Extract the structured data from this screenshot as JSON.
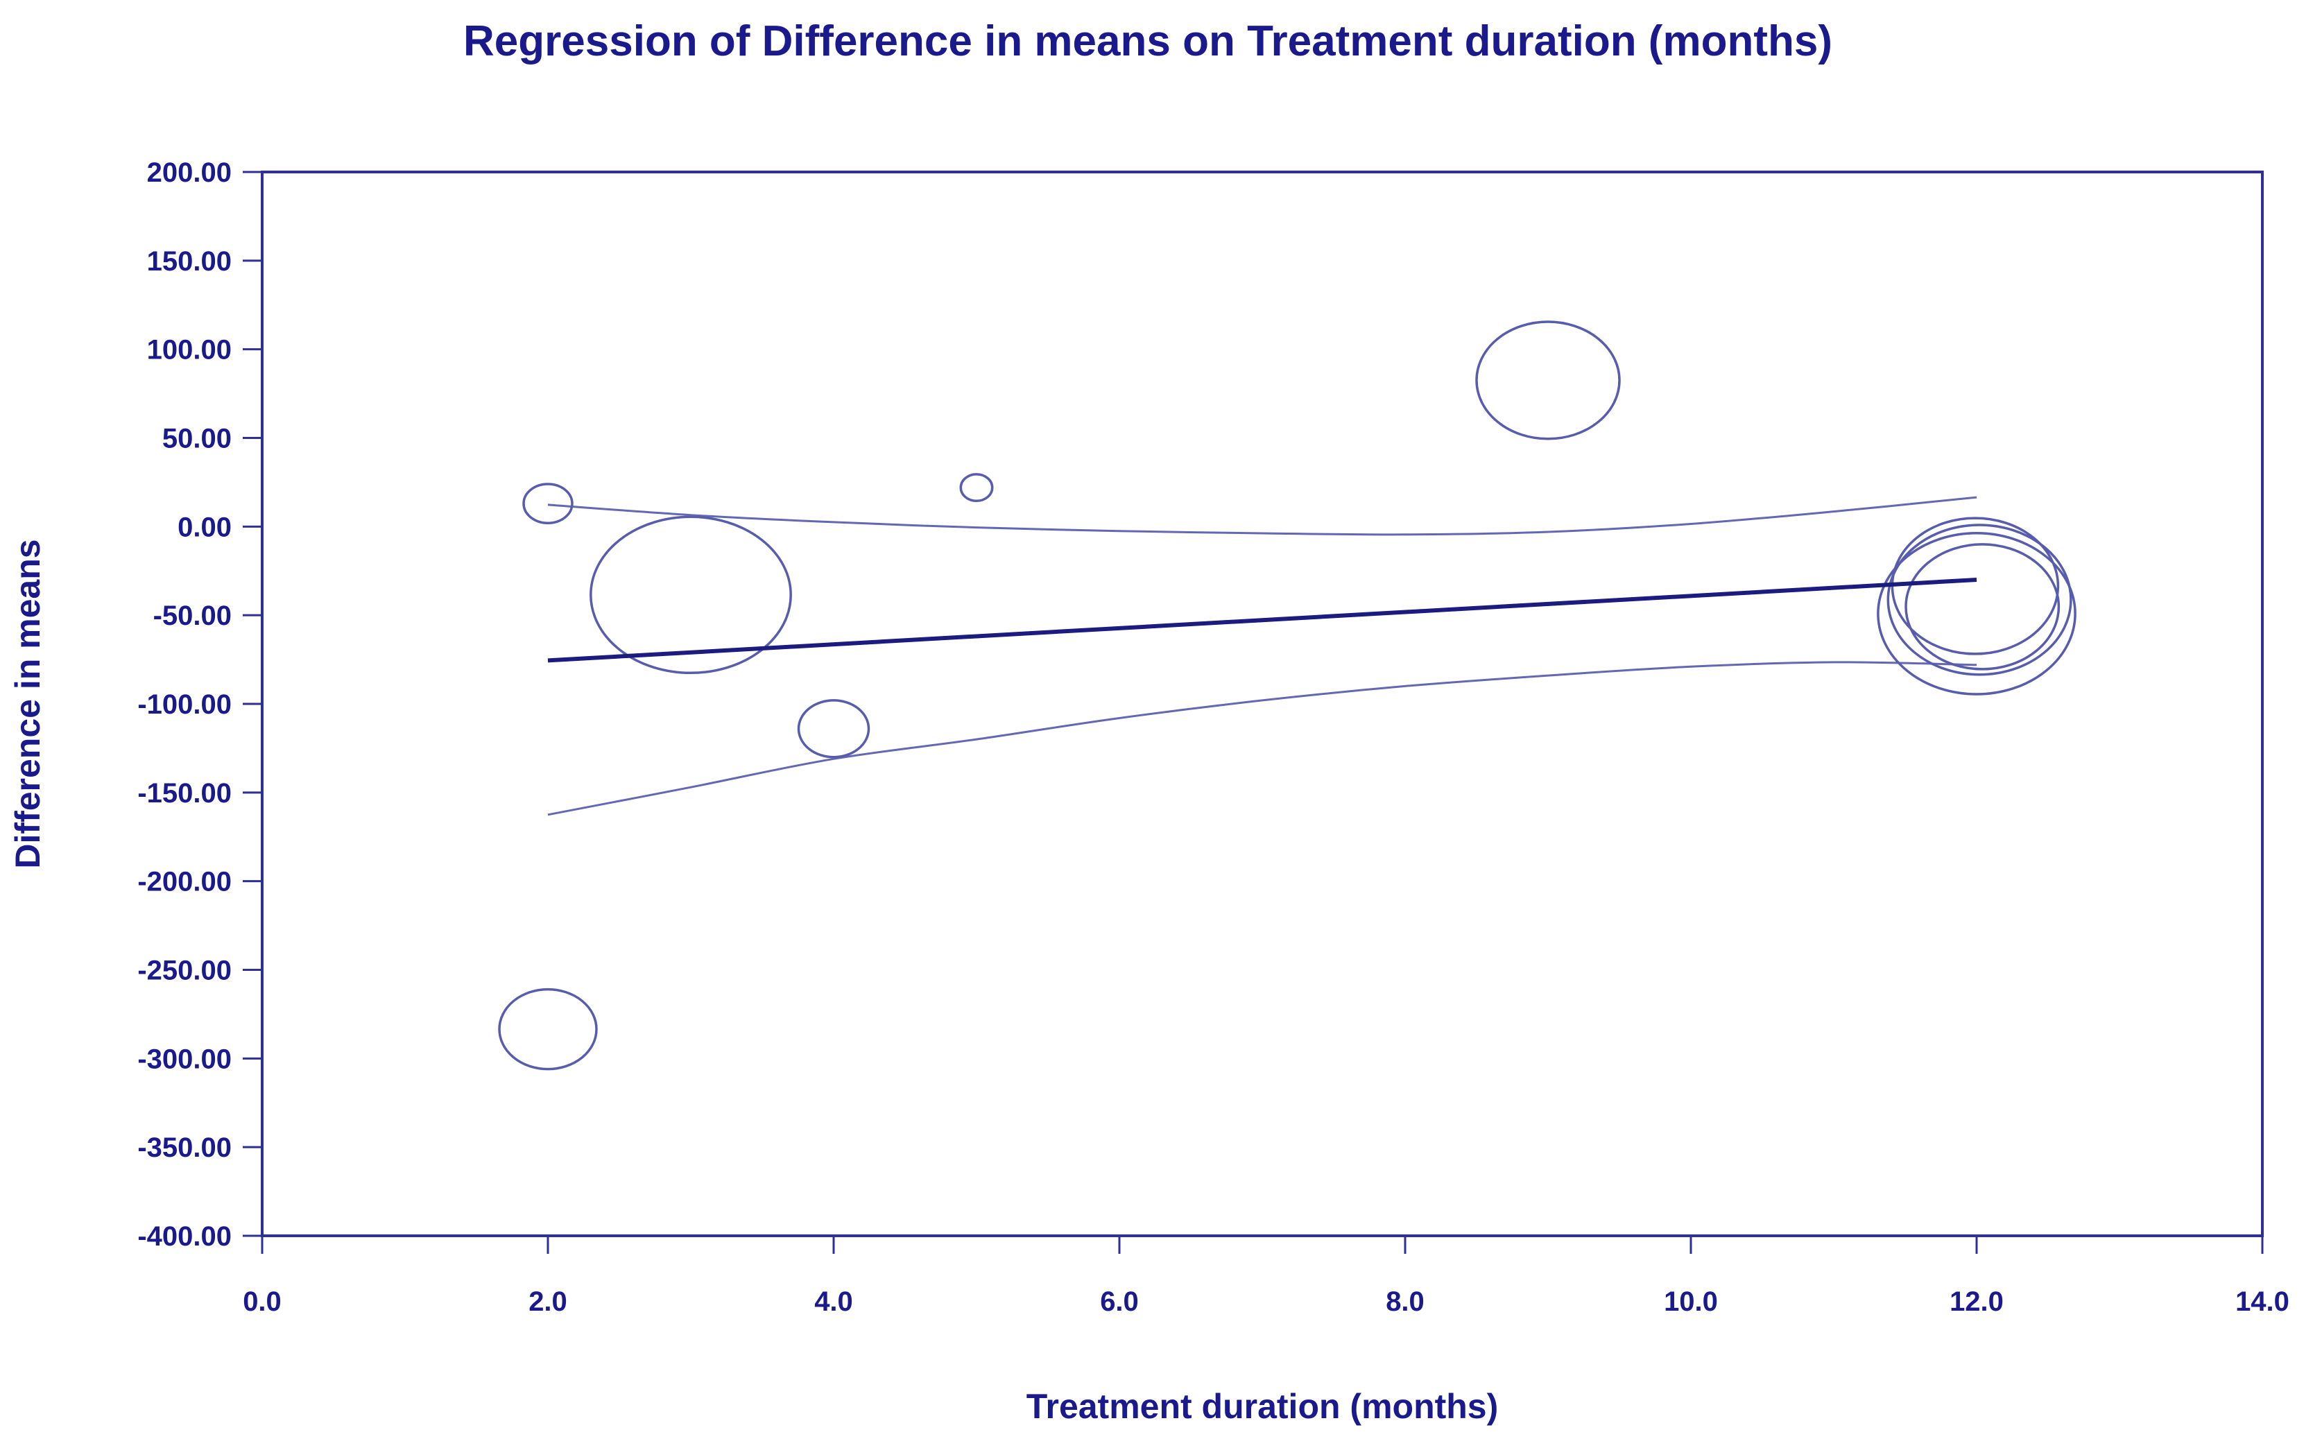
{
  "title": "Regression of Difference in means on Treatment duration (months)",
  "x_axis": {
    "label": "Treatment duration (months)",
    "ticks": [
      "0.0",
      "2.0",
      "4.0",
      "6.0",
      "8.0",
      "10.0",
      "12.0",
      "14.0"
    ]
  },
  "y_axis": {
    "label": "Difference in means",
    "ticks": [
      "200.00",
      "150.00",
      "100.00",
      "50.00",
      "0.00",
      "-50.00",
      "-100.00",
      "-150.00",
      "-200.00",
      "-250.00",
      "-300.00",
      "-350.00",
      "-400.00"
    ]
  },
  "colors": {
    "text": "#1a1a8c",
    "axis": "#2f2f95",
    "bubble": "#575cac",
    "band": "#6468b4",
    "regression": "#1b1b80",
    "background": "#ffffff"
  },
  "chart_data": {
    "type": "scatter",
    "title": "Regression of Difference in means on Treatment duration (months)",
    "xlabel": "Treatment duration (months)",
    "ylabel": "Difference in means",
    "xlim": [
      0,
      14
    ],
    "ylim": [
      -400,
      200
    ],
    "x_tick_step": 2,
    "y_tick_step": 50,
    "grid": false,
    "legend": "none",
    "bubbles": [
      {
        "x": 2.0,
        "y": 13,
        "rx_months": 0.17,
        "ry_units": 11.0
      },
      {
        "x": 3.0,
        "y": -38.5,
        "rx_months": 0.7,
        "ry_units": 44.0
      },
      {
        "x": 4.0,
        "y": -114,
        "rx_months": 0.245,
        "ry_units": 16.0
      },
      {
        "x": 5.0,
        "y": 22,
        "rx_months": 0.11,
        "ry_units": 7.5
      },
      {
        "x": 9.0,
        "y": 82.5,
        "rx_months": 0.5,
        "ry_units": 33.0
      },
      {
        "x": 2.0,
        "y": -283.5,
        "rx_months": 0.34,
        "ry_units": 22.5
      },
      {
        "x": 11.99,
        "y": -33.5,
        "rx_months": 0.58,
        "ry_units": 38.3
      },
      {
        "x": 12.02,
        "y": -41.3,
        "rx_months": 0.64,
        "ry_units": 42.2
      },
      {
        "x": 12.04,
        "y": -45.2,
        "rx_months": 0.535,
        "ry_units": 35.2
      },
      {
        "x": 12.0,
        "y": -49.1,
        "rx_months": 0.69,
        "ry_units": 45.4
      }
    ],
    "regression_line": {
      "x1": 2.0,
      "y1": -75.5,
      "x2": 12.0,
      "y2": -30.0
    },
    "confidence_band": {
      "upper": [
        [
          2,
          12.3
        ],
        [
          3,
          6.5
        ],
        [
          4,
          2.5
        ],
        [
          5,
          -0.5
        ],
        [
          6,
          -2.5
        ],
        [
          7,
          -3.8
        ],
        [
          8,
          -4.5
        ],
        [
          9,
          -3
        ],
        [
          10,
          1.5
        ],
        [
          11,
          8.5
        ],
        [
          12,
          16.5
        ]
      ],
      "lower": [
        [
          2,
          -162.5
        ],
        [
          3,
          -147
        ],
        [
          4,
          -131
        ],
        [
          5,
          -120
        ],
        [
          6,
          -108
        ],
        [
          7,
          -98
        ],
        [
          8,
          -90
        ],
        [
          9,
          -84
        ],
        [
          10,
          -79
        ],
        [
          11,
          -76.5
        ],
        [
          12,
          -78
        ]
      ]
    }
  }
}
